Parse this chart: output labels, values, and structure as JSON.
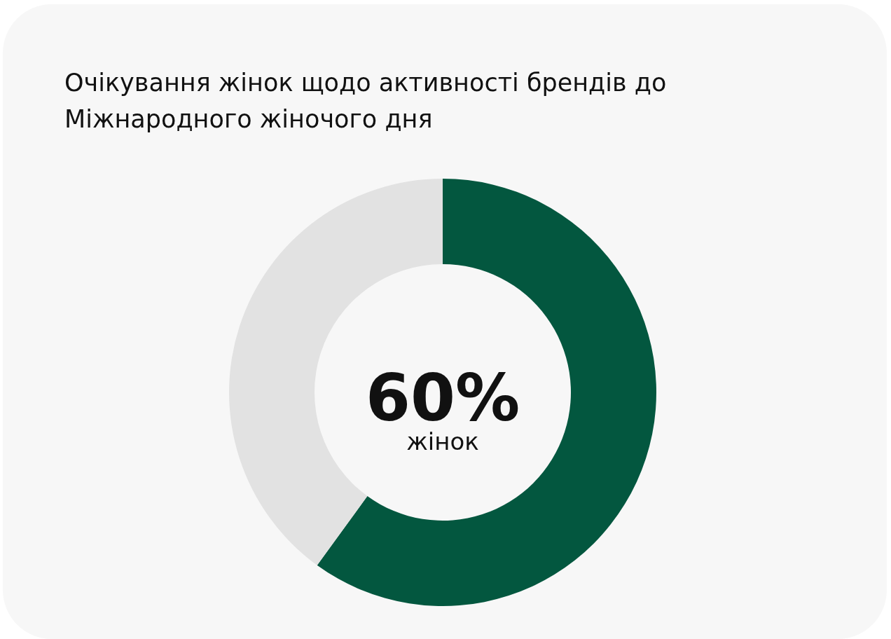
{
  "chart_data": {
    "type": "donut",
    "title": "Очікування жінок щодо активності брендів до Міжнародного жіночого дня",
    "categories": [
      null,
      null
    ],
    "values": [
      60,
      40
    ],
    "colors": [
      "#03573f",
      "#e2e2e2"
    ],
    "value_labels": [
      "60%",
      null
    ],
    "annotations": [
      "жінок"
    ],
    "legend": false
  }
}
